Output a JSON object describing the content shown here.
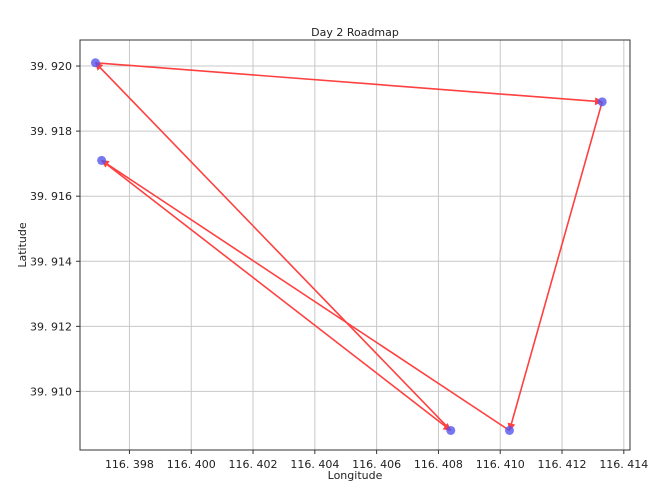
{
  "chart_data": {
    "type": "scatter",
    "title": "Day 2 Roadmap",
    "xlabel": "Longitude",
    "ylabel": "Latitude",
    "xlim": [
      116.3964,
      116.4142
    ],
    "ylim": [
      39.9082,
      39.9208
    ],
    "grid": true,
    "xticks": [
      116.398,
      116.4,
      116.402,
      116.404,
      116.406,
      116.408,
      116.41,
      116.412,
      116.414
    ],
    "xtick_labels": [
      "116. 398",
      "116. 400",
      "116. 402",
      "116. 404",
      "116. 406",
      "116. 408",
      "116. 410",
      "116. 412",
      "116. 414"
    ],
    "yticks": [
      39.91,
      39.912,
      39.914,
      39.916,
      39.918,
      39.92
    ],
    "ytick_labels": [
      "39. 910",
      "39. 912",
      "39. 914",
      "39. 916",
      "39. 918",
      "39. 920"
    ],
    "points": [
      {
        "x": 116.3969,
        "y": 39.9201
      },
      {
        "x": 116.4133,
        "y": 39.9189
      },
      {
        "x": 116.3971,
        "y": 39.9171
      },
      {
        "x": 116.4084,
        "y": 39.9088
      },
      {
        "x": 116.4103,
        "y": 39.9088
      }
    ],
    "route": [
      {
        "x": 116.3971,
        "y": 39.9171
      },
      {
        "x": 116.4084,
        "y": 39.9088
      },
      {
        "x": 116.3969,
        "y": 39.9201
      },
      {
        "x": 116.4133,
        "y": 39.9189
      },
      {
        "x": 116.4103,
        "y": 39.9088
      },
      {
        "x": 116.3971,
        "y": 39.9171
      }
    ],
    "colors": {
      "points": "#5555ee",
      "route": "#ff4040",
      "grid": "#c8c8c8",
      "frame": "#333333"
    }
  }
}
